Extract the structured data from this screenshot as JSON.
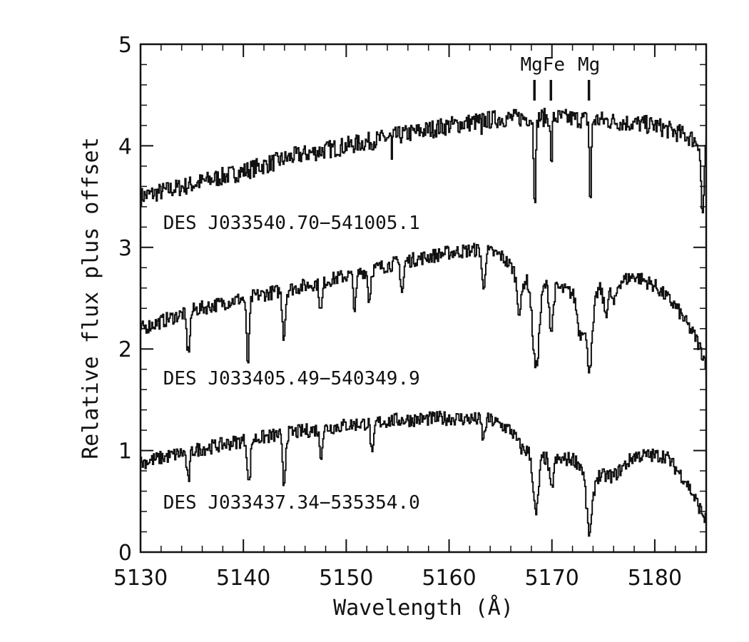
{
  "chart_data": {
    "type": "line",
    "xlabel": "Wavelength (Å)",
    "ylabel": "Relative flux plus offset",
    "xlim": [
      5130,
      5185
    ],
    "ylim": [
      0,
      5
    ],
    "x_ticks": [
      5130,
      5140,
      5150,
      5160,
      5170,
      5180
    ],
    "y_ticks": [
      0,
      1,
      2,
      3,
      4,
      5
    ],
    "x_minor_step": 2,
    "y_minor_step": 0.2,
    "grid": false,
    "color": "#111111",
    "line_markers": [
      {
        "label": "MgFe",
        "wavelengths": [
          5168.3,
          5169.9
        ]
      },
      {
        "label": "Mg",
        "wavelengths": [
          5173.6
        ]
      }
    ],
    "series": [
      {
        "name": "DES J033540.70−541005.1",
        "profile": [
          [
            5130,
            3.5
          ],
          [
            5135,
            3.62
          ],
          [
            5140,
            3.75
          ],
          [
            5145,
            3.9
          ],
          [
            5150,
            4.0
          ],
          [
            5155,
            4.1
          ],
          [
            5160,
            4.2
          ],
          [
            5165,
            4.27
          ],
          [
            5170,
            4.28
          ],
          [
            5175,
            4.25
          ],
          [
            5180,
            4.2
          ],
          [
            5183,
            4.1
          ],
          [
            5185,
            4.0
          ]
        ],
        "noise": 0.09,
        "lines": [
          [
            5168.3,
            0.8,
            0.15
          ],
          [
            5169.9,
            0.5,
            0.12
          ],
          [
            5173.7,
            0.85,
            0.13
          ],
          [
            5184.6,
            0.7,
            0.2
          ],
          [
            5154.4,
            0.25,
            0.06
          ],
          [
            5163.1,
            0.2,
            0.05
          ]
        ],
        "label_y": 3.25
      },
      {
        "name": "DES J033405.49−540349.9",
        "profile": [
          [
            5130,
            2.2
          ],
          [
            5135,
            2.38
          ],
          [
            5140,
            2.5
          ],
          [
            5145,
            2.6
          ],
          [
            5150,
            2.72
          ],
          [
            5155,
            2.85
          ],
          [
            5160,
            2.95
          ],
          [
            5163,
            2.98
          ],
          [
            5165,
            2.92
          ],
          [
            5167,
            2.7
          ],
          [
            5170,
            2.62
          ],
          [
            5172,
            2.55
          ],
          [
            5175,
            2.6
          ],
          [
            5178,
            2.72
          ],
          [
            5180,
            2.62
          ],
          [
            5182,
            2.42
          ],
          [
            5184,
            2.1
          ],
          [
            5185,
            1.85
          ]
        ],
        "noise": 0.07,
        "lines": [
          [
            5134.6,
            0.4,
            0.22
          ],
          [
            5140.4,
            0.65,
            0.2
          ],
          [
            5143.9,
            0.45,
            0.2
          ],
          [
            5147.5,
            0.3,
            0.2
          ],
          [
            5150.8,
            0.35,
            0.2
          ],
          [
            5152.2,
            0.3,
            0.18
          ],
          [
            5155.4,
            0.3,
            0.2
          ],
          [
            5163.3,
            0.4,
            0.2
          ],
          [
            5166.8,
            0.35,
            0.3
          ],
          [
            5168.4,
            0.85,
            0.45
          ],
          [
            5169.9,
            0.45,
            0.25
          ],
          [
            5172.7,
            0.4,
            0.4
          ],
          [
            5173.6,
            0.75,
            0.45
          ],
          [
            5175.2,
            0.25,
            0.3
          ],
          [
            5176.0,
            0.2,
            0.3
          ]
        ],
        "label_y": 1.72
      },
      {
        "name": "DES J033437.34−535354.0",
        "profile": [
          [
            5130,
            0.88
          ],
          [
            5135,
            1.0
          ],
          [
            5140,
            1.1
          ],
          [
            5145,
            1.18
          ],
          [
            5150,
            1.25
          ],
          [
            5155,
            1.3
          ],
          [
            5160,
            1.32
          ],
          [
            5164,
            1.3
          ],
          [
            5166,
            1.2
          ],
          [
            5167,
            1.02
          ],
          [
            5170,
            0.9
          ],
          [
            5172,
            0.92
          ],
          [
            5174,
            0.75
          ],
          [
            5176,
            0.75
          ],
          [
            5178,
            0.95
          ],
          [
            5181,
            0.95
          ],
          [
            5183,
            0.7
          ],
          [
            5185,
            0.3
          ]
        ],
        "noise": 0.07,
        "lines": [
          [
            5134.6,
            0.3,
            0.2
          ],
          [
            5140.5,
            0.45,
            0.2
          ],
          [
            5143.9,
            0.5,
            0.2
          ],
          [
            5147.5,
            0.25,
            0.2
          ],
          [
            5152.5,
            0.35,
            0.2
          ],
          [
            5163.3,
            0.2,
            0.2
          ],
          [
            5168.4,
            0.6,
            0.35
          ],
          [
            5169.9,
            0.3,
            0.25
          ],
          [
            5173.6,
            0.6,
            0.4
          ]
        ],
        "label_y": 0.5
      }
    ]
  }
}
